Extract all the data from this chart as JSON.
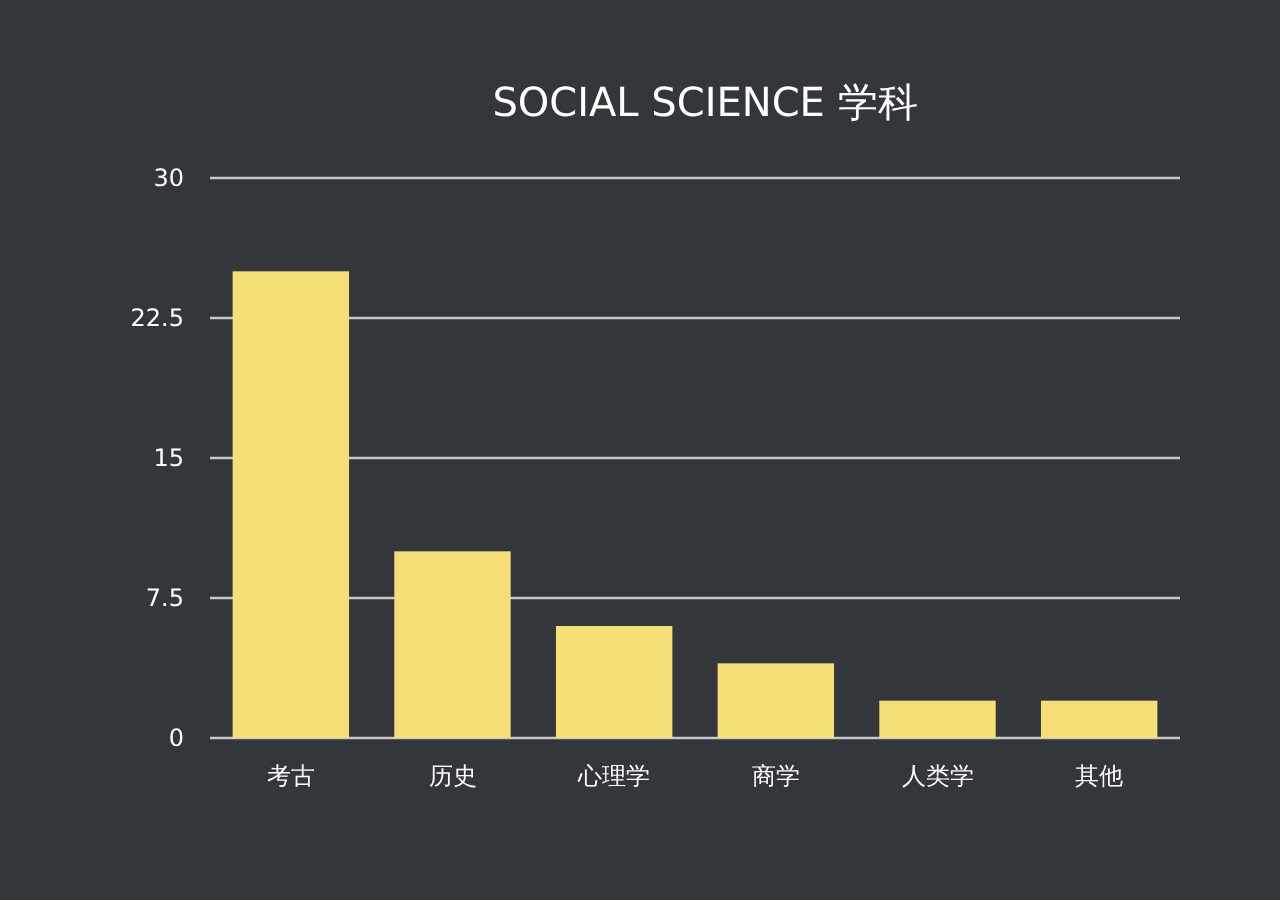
{
  "chart_data": {
    "type": "bar",
    "title": "SOCIAL SCIENCE 学科",
    "categories": [
      "考古",
      "历史",
      "心理学",
      "商学",
      "人类学",
      "其他"
    ],
    "values": [
      25,
      10,
      6,
      4,
      2,
      2
    ],
    "color": "#f6df77",
    "ylim": [
      0,
      30
    ],
    "yticks": [
      0,
      7.5,
      15,
      22.5,
      30
    ],
    "grid": "y"
  }
}
